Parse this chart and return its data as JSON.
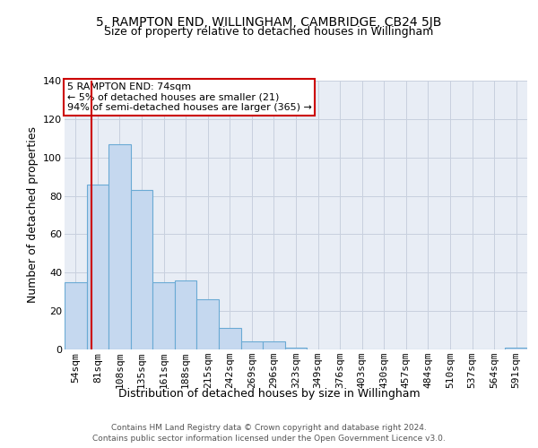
{
  "title": "5, RAMPTON END, WILLINGHAM, CAMBRIDGE, CB24 5JB",
  "subtitle": "Size of property relative to detached houses in Willingham",
  "xlabel": "Distribution of detached houses by size in Willingham",
  "ylabel": "Number of detached properties",
  "bins": [
    "54sqm",
    "81sqm",
    "108sqm",
    "135sqm",
    "161sqm",
    "188sqm",
    "215sqm",
    "242sqm",
    "269sqm",
    "296sqm",
    "323sqm",
    "349sqm",
    "376sqm",
    "403sqm",
    "430sqm",
    "457sqm",
    "484sqm",
    "510sqm",
    "537sqm",
    "564sqm",
    "591sqm"
  ],
  "values": [
    35,
    86,
    107,
    83,
    35,
    36,
    26,
    11,
    4,
    4,
    1,
    0,
    0,
    0,
    0,
    0,
    0,
    0,
    0,
    0,
    1
  ],
  "bar_color": "#c5d8ef",
  "bar_edge_color": "#6aaad4",
  "grid_color": "#c8d0de",
  "background_color": "#e8edf5",
  "vline_color": "#cc0000",
  "annotation_text": "5 RAMPTON END: 74sqm\n← 5% of detached houses are smaller (21)\n94% of semi-detached houses are larger (365) →",
  "annotation_box_color": "#cc0000",
  "ylim": [
    0,
    140
  ],
  "yticks": [
    0,
    20,
    40,
    60,
    80,
    100,
    120,
    140
  ],
  "title_fontsize": 10,
  "subtitle_fontsize": 9,
  "ylabel_fontsize": 9,
  "xlabel_fontsize": 9,
  "tick_fontsize": 8,
  "footer1": "Contains HM Land Registry data © Crown copyright and database right 2024.",
  "footer2": "Contains public sector information licensed under the Open Government Licence v3.0."
}
